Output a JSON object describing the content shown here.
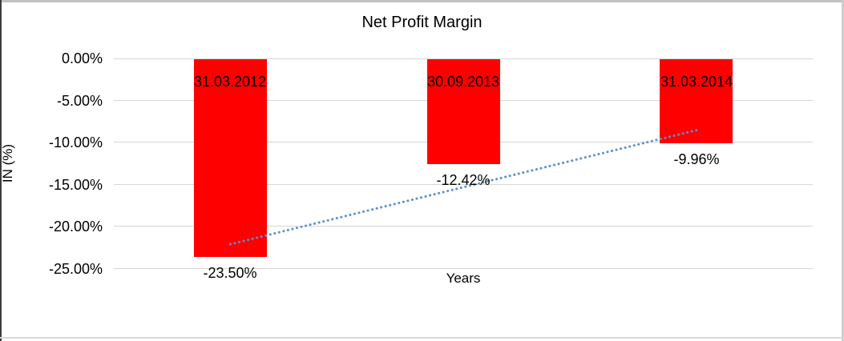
{
  "chart_data": {
    "type": "bar",
    "title": "Net Profit Margin",
    "xlabel": "Years",
    "ylabel": "IN (%)",
    "categories": [
      "31.03.2012",
      "30.09.2013",
      "31.03.2014"
    ],
    "values": [
      -23.5,
      -12.42,
      -9.96
    ],
    "data_labels": [
      "-23.50%",
      "-12.42%",
      "-9.96%"
    ],
    "ytick_labels": [
      "0.00%",
      "-5.00%",
      "-10.00%",
      "-15.00%",
      "-20.00%",
      "-25.00%"
    ],
    "ylim": [
      -25,
      0
    ],
    "grid": true,
    "legend": "none",
    "bar_color": "#ff0000",
    "gridline_color": "#d6d6d6",
    "trendline": {
      "type": "linear",
      "style": "dotted",
      "color": "#5b8fd0"
    }
  }
}
